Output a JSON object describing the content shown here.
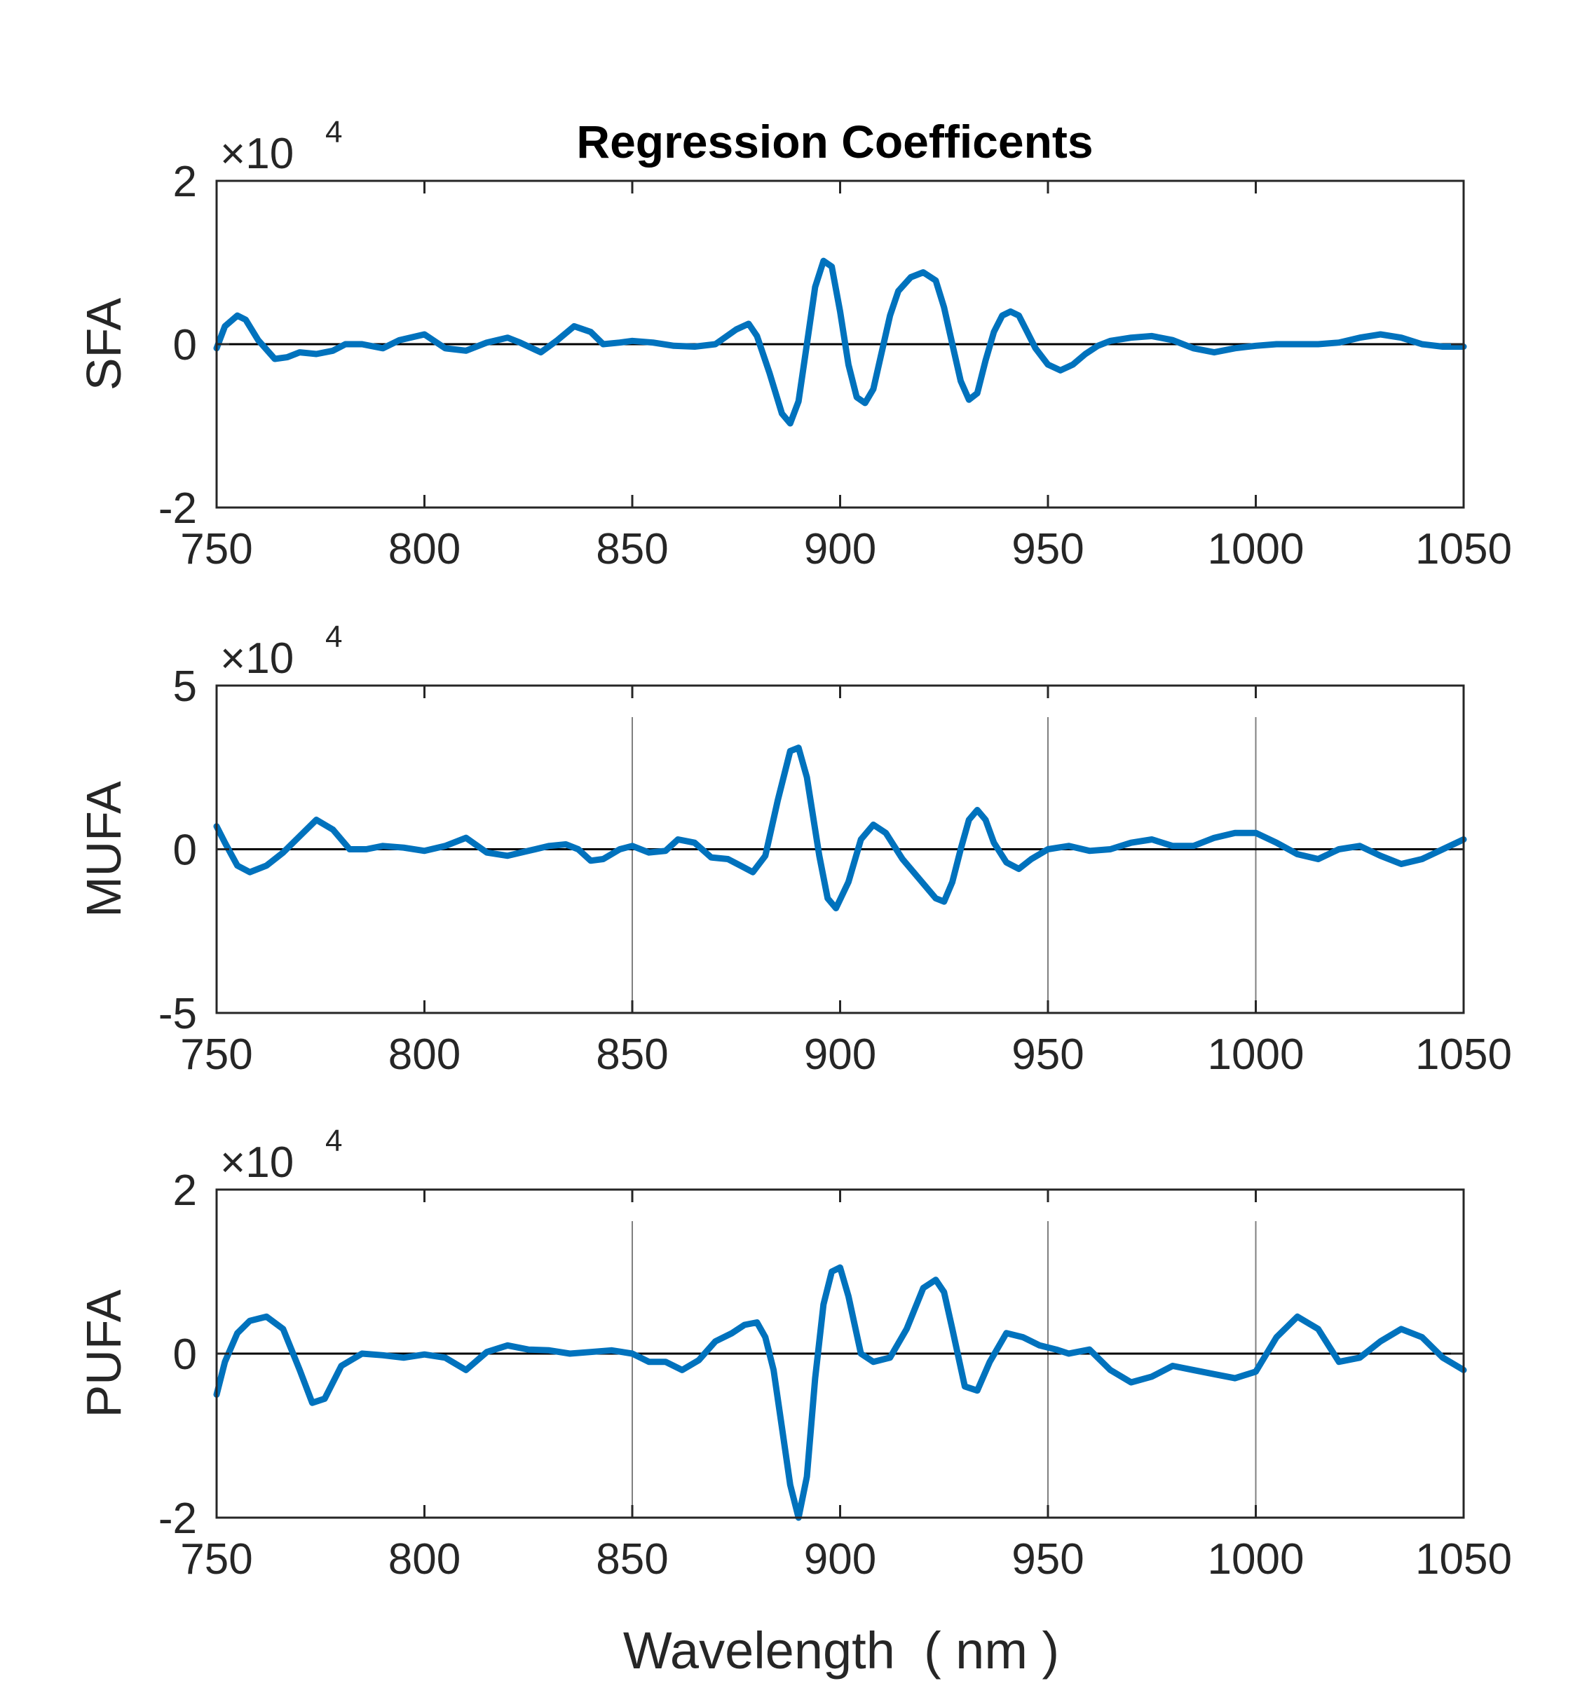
{
  "chart_data": {
    "type": "line",
    "title": "Regression Coefficents",
    "xlabel": "Wavelength  ( nm )",
    "line_color": "#0072BD",
    "xlim": [
      750,
      1050
    ],
    "xticks": [
      750,
      800,
      850,
      900,
      950,
      1000,
      1050
    ],
    "xtick_labels": [
      "750",
      "800",
      "850",
      "900",
      "950",
      "1000",
      "1050"
    ],
    "exponent_label": {
      "base": "×10",
      "power": "4"
    },
    "panels": [
      {
        "ylabel": "SFA",
        "ylim": [
          -2,
          2
        ],
        "yticks": [
          -2,
          0,
          2
        ],
        "ytick_labels": [
          "-2",
          "0",
          "2"
        ],
        "vertical_lines": [],
        "series": [
          {
            "name": "SFA",
            "x": [
              750,
              752,
              755,
              757,
              760,
              764,
              767,
              770,
              774,
              778,
              781,
              785,
              790,
              794,
              800,
              805,
              810,
              815,
              820,
              823,
              828,
              832,
              836,
              840,
              843,
              847,
              850,
              855,
              860,
              865,
              870,
              875,
              878,
              880,
              883,
              886,
              888,
              890,
              892,
              894,
              896,
              898,
              900,
              902,
              904,
              906,
              908,
              910,
              912,
              914,
              917,
              920,
              923,
              925,
              927,
              929,
              931,
              933,
              935,
              937,
              939,
              941,
              943,
              945,
              947,
              950,
              953,
              956,
              959,
              962,
              965,
              970,
              975,
              980,
              985,
              990,
              995,
              1000,
              1005,
              1010,
              1015,
              1020,
              1025,
              1030,
              1035,
              1040,
              1045,
              1050
            ],
            "y": [
              -0.05,
              0.22,
              0.35,
              0.3,
              0.05,
              -0.18,
              -0.16,
              -0.1,
              -0.12,
              -0.08,
              0.0,
              0.0,
              -0.05,
              0.05,
              0.12,
              -0.05,
              -0.08,
              0.02,
              0.08,
              0.02,
              -0.1,
              0.05,
              0.22,
              0.15,
              0.0,
              0.02,
              0.04,
              0.02,
              -0.02,
              -0.03,
              0.0,
              0.18,
              0.25,
              0.1,
              -0.35,
              -0.85,
              -0.97,
              -0.7,
              0.0,
              0.7,
              1.02,
              0.95,
              0.4,
              -0.25,
              -0.65,
              -0.72,
              -0.55,
              -0.1,
              0.35,
              0.65,
              0.82,
              0.88,
              0.78,
              0.45,
              0.0,
              -0.45,
              -0.68,
              -0.6,
              -0.2,
              0.15,
              0.35,
              0.4,
              0.35,
              0.15,
              -0.05,
              -0.25,
              -0.32,
              -0.25,
              -0.12,
              -0.02,
              0.04,
              0.08,
              0.1,
              0.05,
              -0.05,
              -0.1,
              -0.05,
              -0.02,
              0.0,
              0.0,
              0.0,
              0.02,
              0.08,
              0.12,
              0.08,
              0.0,
              -0.03,
              -0.03
            ]
          }
        ]
      },
      {
        "ylabel": "MUFA",
        "ylim": [
          -5,
          5
        ],
        "yticks": [
          -5,
          0,
          5
        ],
        "ytick_labels": [
          "-5",
          "0",
          "5"
        ],
        "vertical_lines": [
          850,
          950,
          1000
        ],
        "series": [
          {
            "name": "MUFA",
            "x": [
              750,
              752,
              755,
              758,
              762,
              766,
              770,
              774,
              778,
              782,
              786,
              790,
              795,
              800,
              805,
              810,
              815,
              820,
              825,
              830,
              834,
              837,
              840,
              843,
              847,
              850,
              854,
              858,
              861,
              865,
              869,
              873,
              876,
              879,
              882,
              885,
              888,
              890,
              892,
              895,
              897,
              899,
              902,
              905,
              908,
              911,
              915,
              919,
              923,
              925,
              927,
              929,
              931,
              933,
              935,
              937,
              940,
              943,
              946,
              950,
              955,
              960,
              965,
              970,
              975,
              980,
              985,
              990,
              995,
              1000,
              1005,
              1010,
              1015,
              1020,
              1025,
              1030,
              1035,
              1040,
              1045,
              1050
            ],
            "y": [
              0.7,
              0.2,
              -0.5,
              -0.7,
              -0.5,
              -0.1,
              0.4,
              0.9,
              0.6,
              0.0,
              0.0,
              0.1,
              0.05,
              -0.05,
              0.1,
              0.35,
              -0.1,
              -0.2,
              -0.05,
              0.1,
              0.15,
              0.0,
              -0.35,
              -0.3,
              0.0,
              0.1,
              -0.1,
              -0.05,
              0.3,
              0.2,
              -0.25,
              -0.3,
              -0.5,
              -0.7,
              -0.2,
              1.5,
              3.0,
              3.1,
              2.2,
              -0.2,
              -1.5,
              -1.8,
              -1.0,
              0.3,
              0.75,
              0.5,
              -0.3,
              -0.9,
              -1.5,
              -1.6,
              -1.0,
              0.0,
              0.9,
              1.2,
              0.9,
              0.2,
              -0.4,
              -0.6,
              -0.3,
              0.0,
              0.1,
              -0.05,
              0.0,
              0.2,
              0.3,
              0.1,
              0.1,
              0.35,
              0.5,
              0.5,
              0.2,
              -0.15,
              -0.3,
              0.0,
              0.1,
              -0.2,
              -0.45,
              -0.3,
              0.0,
              0.3
            ]
          }
        ]
      },
      {
        "ylabel": "PUFA",
        "ylim": [
          -2,
          2
        ],
        "yticks": [
          -2,
          0,
          2
        ],
        "ytick_labels": [
          "-2",
          "0",
          "2"
        ],
        "vertical_lines": [
          850,
          950,
          1000
        ],
        "series": [
          {
            "name": "PUFA",
            "x": [
              750,
              752,
              755,
              758,
              762,
              766,
              770,
              773,
              776,
              780,
              785,
              790,
              795,
              800,
              805,
              810,
              815,
              820,
              825,
              830,
              835,
              840,
              845,
              850,
              854,
              858,
              862,
              866,
              870,
              874,
              877,
              880,
              882,
              884,
              886,
              888,
              890,
              892,
              894,
              896,
              898,
              900,
              902,
              905,
              908,
              912,
              916,
              920,
              923,
              925,
              927,
              930,
              933,
              936,
              940,
              944,
              948,
              952,
              955,
              960,
              965,
              970,
              975,
              980,
              985,
              990,
              995,
              1000,
              1005,
              1010,
              1015,
              1020,
              1025,
              1030,
              1035,
              1040,
              1045,
              1050
            ],
            "y": [
              -0.5,
              -0.1,
              0.25,
              0.4,
              0.45,
              0.3,
              -0.2,
              -0.6,
              -0.55,
              -0.15,
              0.0,
              -0.02,
              -0.05,
              -0.01,
              -0.05,
              -0.2,
              0.02,
              0.1,
              0.05,
              0.04,
              0.0,
              0.02,
              0.04,
              0.0,
              -0.1,
              -0.1,
              -0.2,
              -0.08,
              0.15,
              0.25,
              0.35,
              0.38,
              0.2,
              -0.2,
              -0.9,
              -1.6,
              -2.0,
              -1.5,
              -0.3,
              0.6,
              1.0,
              1.05,
              0.7,
              0.0,
              -0.1,
              -0.05,
              0.3,
              0.8,
              0.9,
              0.75,
              0.3,
              -0.4,
              -0.45,
              -0.1,
              0.25,
              0.2,
              0.1,
              0.05,
              0.0,
              0.05,
              -0.2,
              -0.35,
              -0.28,
              -0.15,
              -0.2,
              -0.25,
              -0.3,
              -0.22,
              0.2,
              0.45,
              0.3,
              -0.1,
              -0.05,
              0.15,
              0.3,
              0.2,
              -0.05,
              -0.2
            ]
          }
        ]
      }
    ]
  }
}
